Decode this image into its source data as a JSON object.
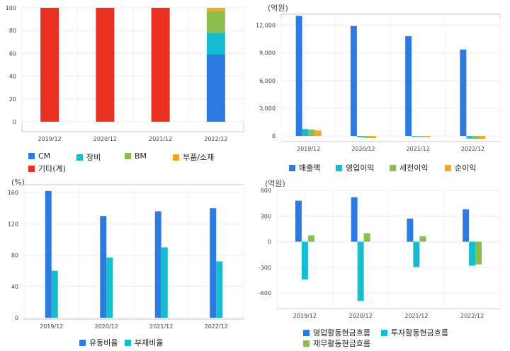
{
  "chart_data": [
    {
      "id": "p1",
      "type": "bar",
      "stacked": true,
      "unit": "",
      "categories": [
        "2019/12",
        "2020/12",
        "2021/12",
        "2022/12"
      ],
      "ylim": [
        0,
        100
      ],
      "yticks": [
        0,
        20,
        40,
        60,
        80,
        100
      ],
      "series": [
        {
          "name": "CM",
          "color": "#2d7be0",
          "values": [
            0,
            0,
            0,
            59
          ]
        },
        {
          "name": "장비",
          "color": "#16bcd0",
          "values": [
            0,
            0,
            0,
            19
          ]
        },
        {
          "name": "BM",
          "color": "#8bbd4f",
          "values": [
            0,
            0,
            0,
            19
          ]
        },
        {
          "name": "부품/소재",
          "color": "#f4a52a",
          "values": [
            0,
            0,
            0,
            3
          ]
        },
        {
          "name": "기타(계)",
          "color": "#e8311e",
          "values": [
            100,
            100,
            100,
            0
          ]
        }
      ],
      "legend_position": "bottom"
    },
    {
      "id": "p2",
      "type": "bar",
      "unit": "(억원)",
      "categories": [
        "2019/12",
        "2020/12",
        "2021/12",
        "2022/12"
      ],
      "ylim": [
        -600,
        12800
      ],
      "yticks": [
        0,
        3000,
        6000,
        9000,
        12000
      ],
      "ytick_labels": [
        "0",
        "3,000",
        "6,000",
        "9,000",
        "12,000"
      ],
      "series": [
        {
          "name": "매출액",
          "color": "#2d7be0",
          "values": [
            13000,
            11900,
            10800,
            9350
          ]
        },
        {
          "name": "영업이익",
          "color": "#16bcd0",
          "values": [
            750,
            -150,
            -100,
            -280
          ]
        },
        {
          "name": "세전이익",
          "color": "#8bbd4f",
          "values": [
            700,
            -200,
            -120,
            -320
          ]
        },
        {
          "name": "순이익",
          "color": "#f4a52a",
          "values": [
            600,
            -220,
            -130,
            -330
          ]
        }
      ],
      "legend_position": "bottom"
    },
    {
      "id": "p3",
      "type": "bar",
      "unit": "(%)",
      "categories": [
        "2019/12",
        "2020/12",
        "2021/12",
        "2022/12"
      ],
      "ylim": [
        0,
        170
      ],
      "yticks": [
        0,
        40,
        80,
        120,
        160
      ],
      "series": [
        {
          "name": "유동비율",
          "color": "#2d7be0",
          "values": [
            162,
            130,
            136,
            140
          ]
        },
        {
          "name": "부채비율",
          "color": "#16bcd0",
          "values": [
            60,
            77,
            90,
            72
          ]
        }
      ],
      "legend_position": "bottom"
    },
    {
      "id": "p4",
      "type": "bar",
      "unit": "(억원)",
      "categories": [
        "2019/12",
        "2020/12",
        "2021/12",
        "2022/12"
      ],
      "ylim": [
        -780,
        600
      ],
      "yticks": [
        -600,
        -300,
        0,
        300,
        600
      ],
      "series": [
        {
          "name": "영업활동현금흐름",
          "color": "#2d7be0",
          "values": [
            480,
            520,
            270,
            380
          ]
        },
        {
          "name": "투자활동현금흐름",
          "color": "#16bcd0",
          "values": [
            -440,
            -690,
            -295,
            -280
          ]
        },
        {
          "name": "재무활동현금흐름",
          "color": "#8bbd4f",
          "values": [
            75,
            100,
            65,
            -265
          ]
        }
      ],
      "legend_position": "bottom"
    }
  ]
}
